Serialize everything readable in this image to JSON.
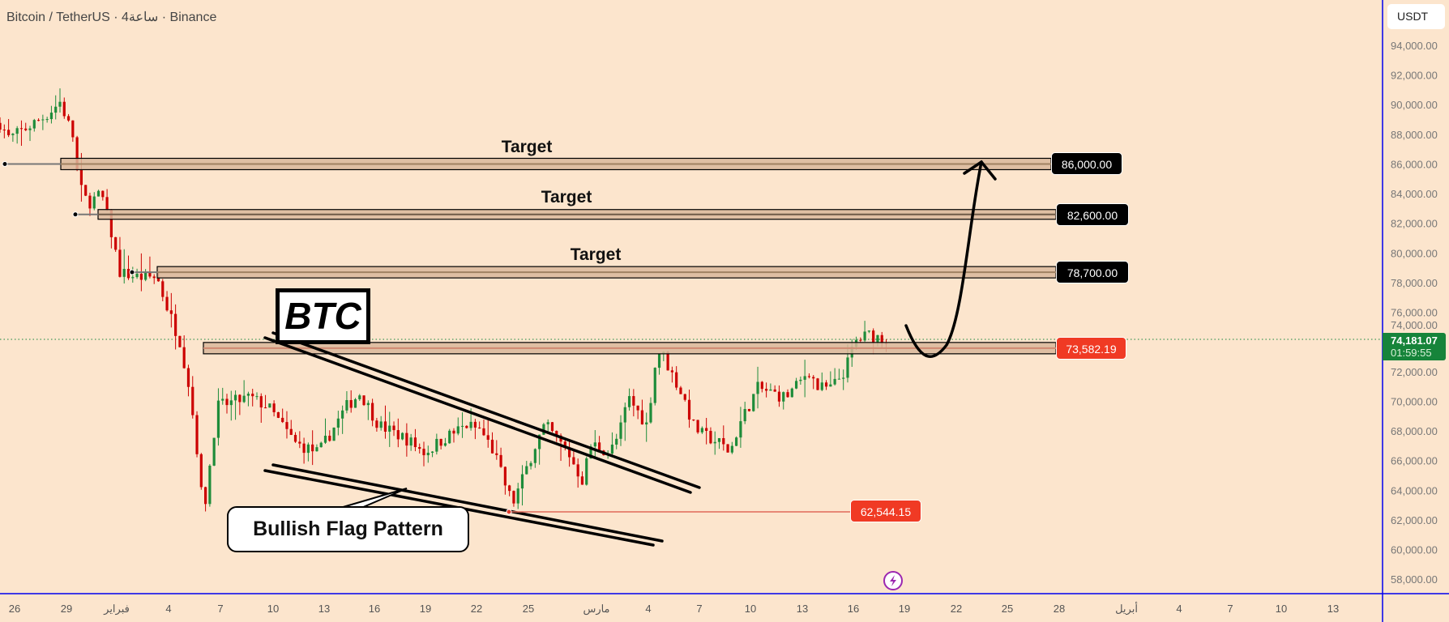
{
  "header": {
    "title": "Bitcoin / TetherUS · 4ساعة · Binance"
  },
  "price_axis": {
    "currency": "USDT",
    "ticks": [
      "94,000.00",
      "92,000.00",
      "90,000.00",
      "88,000.00",
      "86,000.00",
      "84,000.00",
      "82,000.00",
      "80,000.00",
      "78,000.00",
      "76,000.00",
      "74,000.00",
      "72,000.00",
      "70,000.00",
      "68,000.00",
      "66,000.00",
      "64,000.00",
      "62,000.00",
      "60,000.00",
      "58,000.00"
    ],
    "current_price": "74,181.07",
    "countdown": "01:59:55"
  },
  "time_axis": {
    "ticks": [
      "26",
      "29",
      "فبراير",
      "4",
      "7",
      "10",
      "13",
      "16",
      "19",
      "22",
      "25",
      "مارس",
      "4",
      "7",
      "10",
      "13",
      "16",
      "19",
      "22",
      "25",
      "28",
      "أبريل",
      "4",
      "7",
      "10",
      "13"
    ]
  },
  "annotations": {
    "targets": [
      {
        "label": "Target",
        "price": 86000,
        "price_label": "86,000.00"
      },
      {
        "label": "Target",
        "price": 82600,
        "price_label": "82,600.00"
      },
      {
        "label": "Target",
        "price": 78700,
        "price_label": "78,700.00"
      }
    ],
    "resistance": {
      "price": 73582.19,
      "price_label": "73,582.19"
    },
    "low": {
      "price": 62544.15,
      "price_label": "62,544.15"
    },
    "symbol_box": "BTC",
    "pattern_label": "Bullish Flag Pattern"
  },
  "colors": {
    "background": "#fce5cd",
    "up": "#1e8c3a",
    "down": "#cc0000",
    "zone": "#d9b99b",
    "label_red": "#f03a24",
    "current": "#16843a"
  },
  "chart_data": {
    "type": "candlestick",
    "title": "Bitcoin / TetherUS · 4h · Binance",
    "x_unit": "days since Jan 26",
    "ylim": [
      58000,
      94000
    ],
    "path": [
      [
        -0.85,
        88770
      ],
      [
        -0.31,
        87700
      ],
      [
        1.85,
        89270
      ],
      [
        2.66,
        90200
      ],
      [
        3.46,
        87700
      ],
      [
        3.73,
        84600
      ],
      [
        4.27,
        83350
      ],
      [
        5.08,
        83970
      ],
      [
        5.62,
        81480
      ],
      [
        6.16,
        78670
      ],
      [
        7.24,
        78360
      ],
      [
        8.32,
        78360
      ],
      [
        8.86,
        76490
      ],
      [
        9.67,
        74000
      ],
      [
        10.21,
        70890
      ],
      [
        10.75,
        65900
      ],
      [
        11.02,
        62170
      ],
      [
        11.83,
        69640
      ],
      [
        13.71,
        70260
      ],
      [
        14.79,
        69640
      ],
      [
        16.41,
        67150
      ],
      [
        17.76,
        66530
      ],
      [
        19.38,
        69640
      ],
      [
        20.19,
        70570
      ],
      [
        21.27,
        68390
      ],
      [
        22.88,
        67460
      ],
      [
        23.96,
        66530
      ],
      [
        25.04,
        67460
      ],
      [
        26.39,
        68390
      ],
      [
        27.2,
        68080
      ],
      [
        28.01,
        66530
      ],
      [
        28.55,
        64660
      ],
      [
        29.09,
        63100
      ],
      [
        29.63,
        64660
      ],
      [
        30.44,
        67150
      ],
      [
        30.98,
        68390
      ],
      [
        32.33,
        66530
      ],
      [
        33.14,
        64660
      ],
      [
        33.68,
        67150
      ],
      [
        34.76,
        66530
      ],
      [
        35.3,
        67770
      ],
      [
        35.84,
        70260
      ],
      [
        36.92,
        68390
      ],
      [
        37.45,
        72750
      ],
      [
        37.72,
        73500
      ],
      [
        38.26,
        72130
      ],
      [
        39.07,
        70260
      ],
      [
        39.61,
        68390
      ],
      [
        40.15,
        67770
      ],
      [
        41.23,
        67150
      ],
      [
        41.77,
        66530
      ],
      [
        42.31,
        68390
      ],
      [
        43.39,
        70890
      ],
      [
        44.2,
        70570
      ],
      [
        45.01,
        70260
      ],
      [
        45.82,
        71200
      ],
      [
        46.36,
        72130
      ],
      [
        46.9,
        70890
      ],
      [
        47.71,
        70890
      ],
      [
        48.52,
        72130
      ],
      [
        49.06,
        74000
      ],
      [
        49.87,
        74500
      ],
      [
        50.95,
        74180
      ]
    ]
  }
}
